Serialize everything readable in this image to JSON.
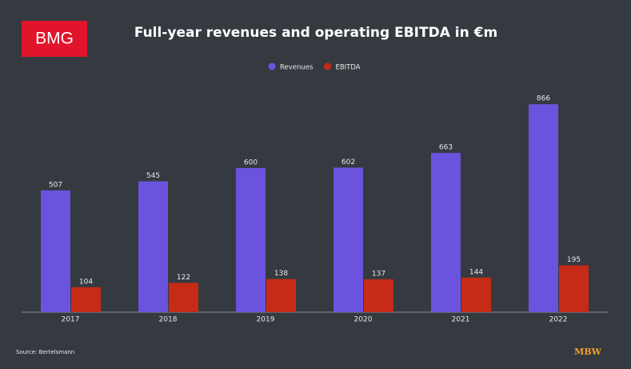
{
  "logo": "BMG",
  "source": "Source: Bertelsmann",
  "brand": "MBW",
  "chart_data": {
    "type": "bar",
    "title": "Full-year revenues and operating EBITDA in €m",
    "categories": [
      "2017",
      "2018",
      "2019",
      "2020",
      "2021",
      "2022"
    ],
    "series": [
      {
        "name": "Revenues",
        "color": "#6b53de",
        "values": [
          507,
          545,
          600,
          602,
          663,
          866
        ]
      },
      {
        "name": "EBITDA",
        "color": "#c52b16",
        "values": [
          104,
          122,
          138,
          137,
          144,
          195
        ]
      }
    ],
    "legend": "top"
  }
}
